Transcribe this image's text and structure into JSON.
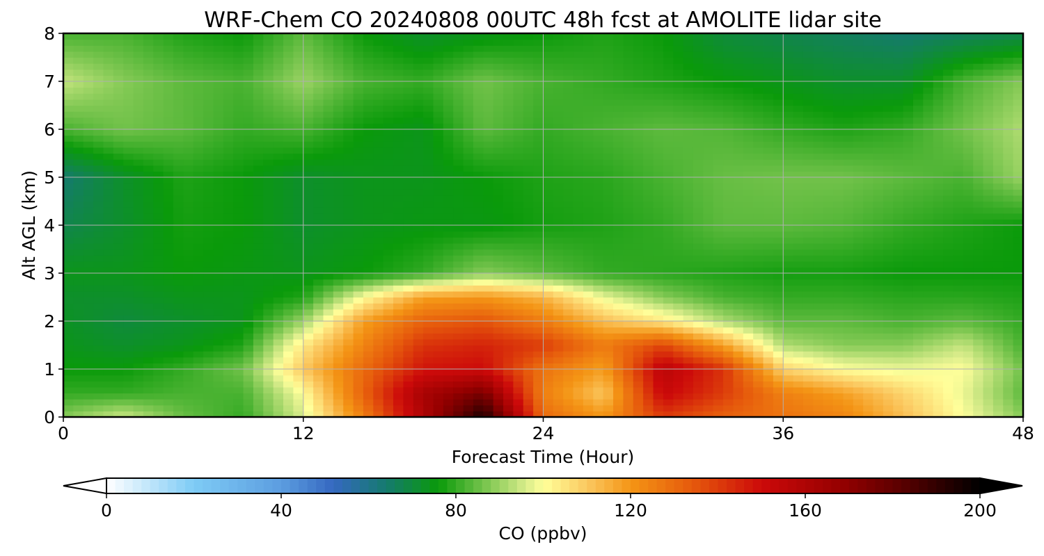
{
  "chart_data": {
    "type": "heatmap",
    "title": "WRF-Chem CO  20240808 00UTC 48h fcst at AMOLITE lidar site",
    "xlabel": "Forecast Time (Hour)",
    "ylabel": "Alt AGL (km)",
    "xlim": [
      0,
      48
    ],
    "ylim": [
      0,
      8
    ],
    "xticks": [
      "0",
      "12",
      "24",
      "36",
      "48"
    ],
    "yticks": [
      "0",
      "1",
      "2",
      "3",
      "4",
      "5",
      "6",
      "7",
      "8"
    ],
    "grid": true,
    "colorbar": {
      "label": "CO  (ppbv)",
      "range": [
        0,
        200
      ],
      "ticks": [
        "0",
        "40",
        "80",
        "120",
        "160",
        "200"
      ],
      "extend": "both",
      "orientation": "horizontal"
    },
    "x": [
      0,
      3,
      6,
      9,
      12,
      15,
      18,
      21,
      24,
      27,
      30,
      33,
      36,
      39,
      42,
      45,
      48
    ],
    "y": [
      0,
      0.5,
      1,
      1.5,
      2,
      2.5,
      3,
      4,
      5,
      6,
      7,
      8
    ],
    "z": [
      [
        88,
        95,
        85,
        80,
        96,
        125,
        160,
        195,
        130,
        120,
        140,
        132,
        128,
        124,
        112,
        100,
        88
      ],
      [
        80,
        80,
        82,
        82,
        100,
        132,
        162,
        175,
        125,
        110,
        152,
        140,
        125,
        118,
        108,
        98,
        84
      ],
      [
        76,
        76,
        80,
        86,
        110,
        130,
        148,
        150,
        128,
        118,
        156,
        142,
        108,
        100,
        98,
        100,
        86
      ],
      [
        74,
        72,
        74,
        78,
        104,
        124,
        142,
        145,
        140,
        126,
        138,
        118,
        92,
        88,
        88,
        94,
        82
      ],
      [
        73,
        70,
        72,
        74,
        90,
        118,
        132,
        135,
        126,
        112,
        104,
        92,
        84,
        84,
        82,
        84,
        80
      ],
      [
        72,
        72,
        74,
        74,
        78,
        100,
        118,
        120,
        114,
        98,
        88,
        82,
        80,
        80,
        79,
        79,
        78
      ],
      [
        74,
        74,
        76,
        75,
        74,
        76,
        80,
        88,
        84,
        80,
        79,
        78,
        77,
        77,
        76,
        76,
        76
      ],
      [
        68,
        72,
        77,
        76,
        72,
        74,
        75,
        75,
        77,
        78,
        80,
        84,
        84,
        83,
        80,
        78,
        76
      ],
      [
        64,
        72,
        78,
        76,
        72,
        74,
        74,
        76,
        78,
        79,
        82,
        85,
        86,
        86,
        84,
        82,
        90
      ],
      [
        82,
        86,
        84,
        80,
        82,
        76,
        74,
        84,
        80,
        82,
        84,
        83,
        80,
        78,
        80,
        86,
        92
      ],
      [
        94,
        88,
        84,
        82,
        90,
        82,
        80,
        86,
        82,
        80,
        78,
        76,
        74,
        72,
        72,
        82,
        88
      ],
      [
        82,
        82,
        78,
        76,
        84,
        76,
        72,
        74,
        76,
        78,
        76,
        70,
        68,
        66,
        64,
        66,
        68
      ]
    ]
  },
  "colors": {
    "stops": [
      [
        0,
        "#ffffff"
      ],
      [
        20,
        "#7ecbf5"
      ],
      [
        40,
        "#5c9de0"
      ],
      [
        52,
        "#3568c0"
      ],
      [
        64,
        "#157a6e"
      ],
      [
        76,
        "#0a9a0a"
      ],
      [
        86,
        "#72c24a"
      ],
      [
        96,
        "#d8ec8a"
      ],
      [
        100,
        "#ffff9a"
      ],
      [
        110,
        "#fbc860"
      ],
      [
        120,
        "#f49515"
      ],
      [
        134,
        "#e65a0c"
      ],
      [
        150,
        "#cc0a0a"
      ],
      [
        168,
        "#960000"
      ],
      [
        182,
        "#5a0000"
      ],
      [
        200,
        "#000000"
      ]
    ],
    "grid": "#b0b0b0",
    "axis": "#000000"
  }
}
